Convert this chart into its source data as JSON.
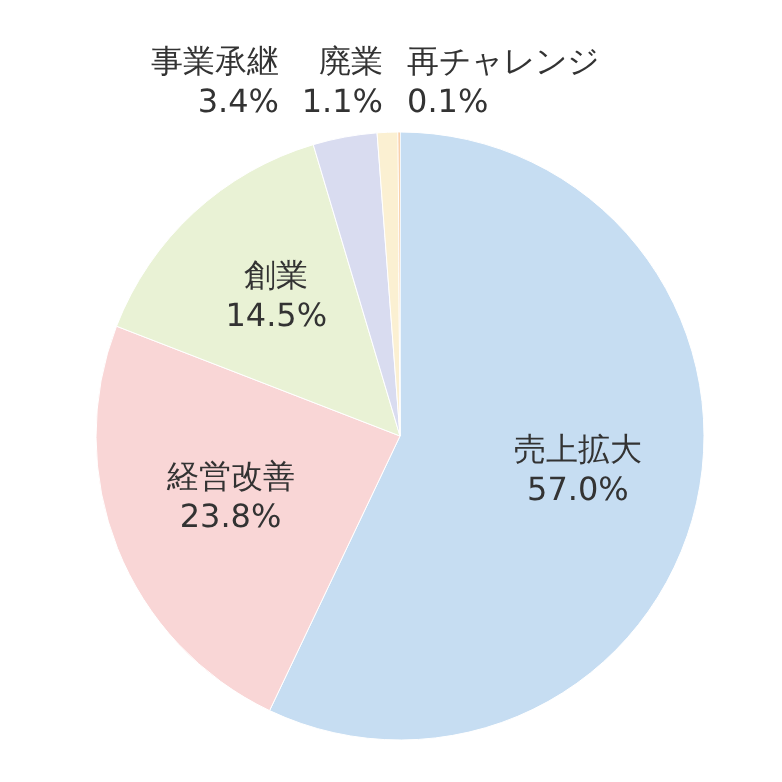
{
  "chart_data": {
    "type": "pie",
    "categories": [
      "売上拡大",
      "経営改善",
      "創業",
      "事業承継",
      "廃業",
      "再チャレンジ"
    ],
    "values": [
      57.0,
      23.8,
      14.5,
      3.4,
      1.1,
      0.1
    ],
    "value_labels": [
      "57.0%",
      "23.8%",
      "14.5%",
      "3.4%",
      "1.1%",
      "0.1%"
    ],
    "colors": [
      "#c6ddf2",
      "#f9d6d6",
      "#e9f2d5",
      "#d9dcf0",
      "#fbf0d2",
      "#f4a259"
    ]
  }
}
